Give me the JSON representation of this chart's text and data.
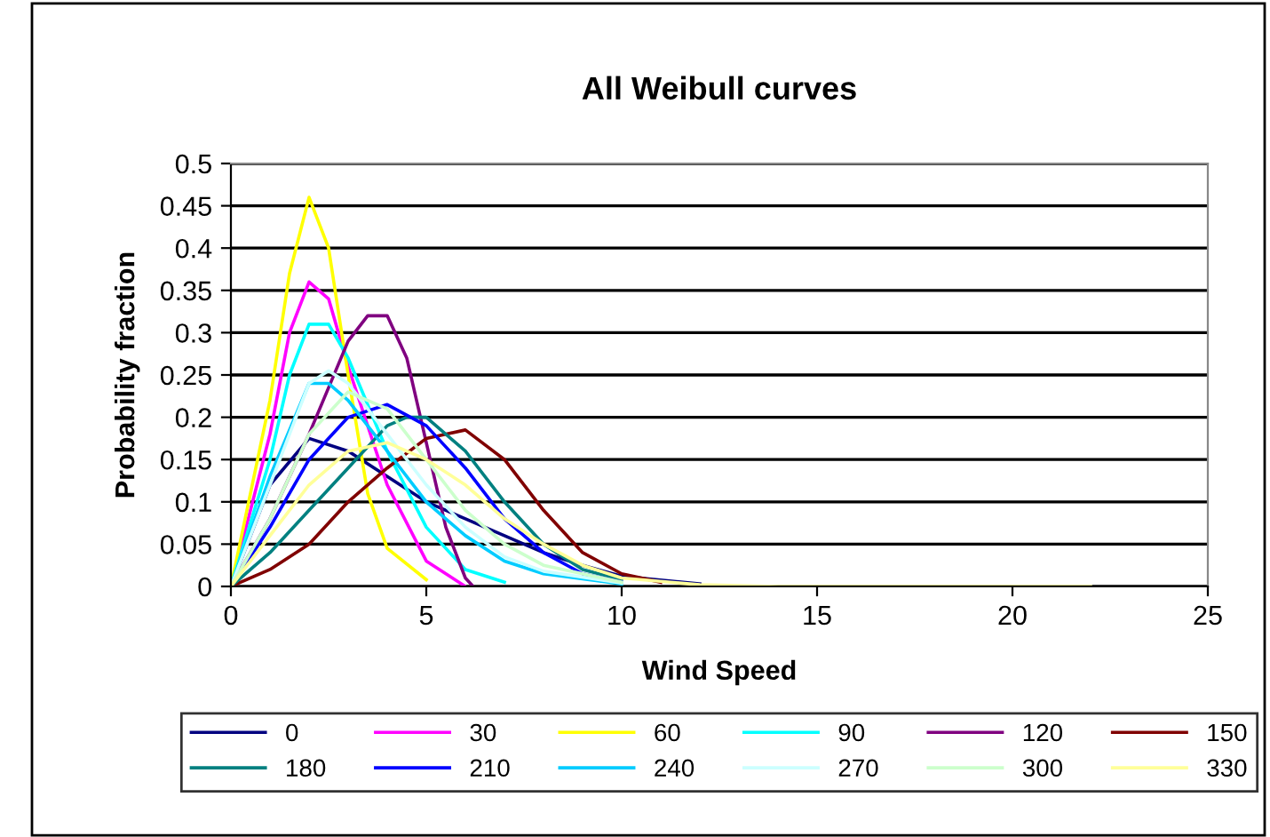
{
  "chart_data": {
    "type": "line",
    "title": "All Weibull curves",
    "xlabel": "Wind Speed",
    "ylabel": "Probability fraction",
    "xlim": [
      0,
      25
    ],
    "xticks": [
      0,
      5,
      10,
      15,
      20,
      25
    ],
    "ylim": [
      0,
      0.5
    ],
    "yticks": [
      0,
      0.05,
      0.1,
      0.15,
      0.2,
      0.25,
      0.3,
      0.35,
      0.4,
      0.45,
      0.5
    ],
    "grid": "y",
    "legend": "bottom",
    "marker": "none",
    "line_style": "solid",
    "series": [
      {
        "name": "0",
        "color": "#000080",
        "x": [
          0,
          1,
          2,
          3,
          4,
          5,
          6,
          7,
          8,
          9,
          10,
          12
        ],
        "values": [
          0,
          0.12,
          0.175,
          0.16,
          0.13,
          0.1,
          0.08,
          0.06,
          0.04,
          0.025,
          0.012,
          0.003
        ]
      },
      {
        "name": "30",
        "color": "#ff00ff",
        "x": [
          0,
          1,
          1.5,
          2,
          2.5,
          3,
          4,
          5,
          6
        ],
        "values": [
          0,
          0.18,
          0.3,
          0.36,
          0.34,
          0.26,
          0.12,
          0.03,
          0
        ]
      },
      {
        "name": "60",
        "color": "#ffff00",
        "x": [
          0,
          1,
          1.5,
          2,
          2.5,
          3,
          3.5,
          4,
          5
        ],
        "values": [
          0,
          0.22,
          0.37,
          0.46,
          0.4,
          0.25,
          0.11,
          0.045,
          0.008
        ]
      },
      {
        "name": "90",
        "color": "#00ffff",
        "x": [
          0,
          1,
          1.5,
          2,
          2.5,
          3,
          4,
          5,
          6,
          7
        ],
        "values": [
          0,
          0.15,
          0.25,
          0.31,
          0.31,
          0.27,
          0.16,
          0.07,
          0.02,
          0.005
        ]
      },
      {
        "name": "120",
        "color": "#800080",
        "x": [
          0,
          1,
          2,
          3,
          3.5,
          4,
          4.5,
          5,
          5.5,
          6,
          6.2
        ],
        "values": [
          0,
          0.08,
          0.18,
          0.29,
          0.32,
          0.32,
          0.27,
          0.17,
          0.07,
          0.01,
          0
        ]
      },
      {
        "name": "150",
        "color": "#800000",
        "x": [
          0,
          1,
          2,
          3,
          4,
          5,
          6,
          7,
          8,
          9,
          10,
          11
        ],
        "values": [
          0,
          0.02,
          0.05,
          0.1,
          0.14,
          0.175,
          0.185,
          0.15,
          0.09,
          0.04,
          0.015,
          0.005
        ]
      },
      {
        "name": "180",
        "color": "#008080",
        "x": [
          0,
          1,
          2,
          3,
          4,
          4.5,
          5,
          6,
          7,
          8,
          9,
          10
        ],
        "values": [
          0,
          0.04,
          0.09,
          0.14,
          0.19,
          0.2,
          0.2,
          0.16,
          0.1,
          0.05,
          0.02,
          0.008
        ]
      },
      {
        "name": "210",
        "color": "#0000ff",
        "x": [
          0,
          1,
          2,
          3,
          4,
          5,
          6,
          7,
          8,
          9,
          10
        ],
        "values": [
          0,
          0.07,
          0.15,
          0.2,
          0.215,
          0.19,
          0.14,
          0.08,
          0.04,
          0.015,
          0.005
        ]
      },
      {
        "name": "240",
        "color": "#00ccff",
        "x": [
          0,
          1,
          2,
          2.5,
          3,
          4,
          5,
          6,
          7,
          8,
          10
        ],
        "values": [
          0,
          0.13,
          0.24,
          0.24,
          0.22,
          0.16,
          0.1,
          0.06,
          0.03,
          0.015,
          0.003
        ]
      },
      {
        "name": "270",
        "color": "#ccffff",
        "x": [
          0,
          1,
          2,
          2.5,
          3,
          4,
          5,
          6,
          7,
          8,
          10
        ],
        "values": [
          0,
          0.12,
          0.24,
          0.255,
          0.24,
          0.18,
          0.12,
          0.07,
          0.035,
          0.018,
          0.004
        ]
      },
      {
        "name": "300",
        "color": "#ccffcc",
        "x": [
          0,
          1,
          2,
          3,
          4,
          5,
          6,
          7,
          8,
          10
        ],
        "values": [
          0,
          0.08,
          0.18,
          0.23,
          0.21,
          0.15,
          0.09,
          0.05,
          0.025,
          0.005
        ]
      },
      {
        "name": "330",
        "color": "#ffff99",
        "x": [
          0,
          1,
          2,
          3,
          4,
          5,
          6,
          7,
          8,
          9,
          10,
          12,
          14,
          22
        ],
        "values": [
          0,
          0.06,
          0.12,
          0.16,
          0.17,
          0.15,
          0.12,
          0.08,
          0.05,
          0.025,
          0.01,
          0.002,
          0,
          0
        ]
      }
    ]
  }
}
